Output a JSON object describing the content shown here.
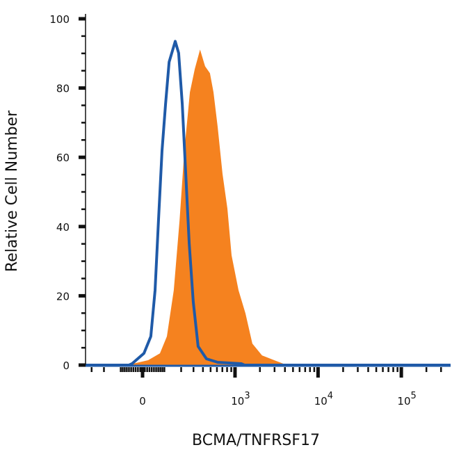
{
  "chart_data": {
    "type": "area",
    "xlabel": "BCMA/TNFRSF17",
    "ylabel": "Relative Cell Number",
    "x_scale": "biexponential",
    "xlim": [
      -360,
      390000
    ],
    "ylim": [
      0,
      100
    ],
    "x_ticks": [
      {
        "value": 0,
        "label": "0",
        "exp": ""
      },
      {
        "value": 1000,
        "label": "10",
        "exp": "3"
      },
      {
        "value": 10000,
        "label": "10",
        "exp": "4"
      },
      {
        "value": 100000,
        "label": "10",
        "exp": "5"
      }
    ],
    "y_ticks": [
      {
        "value": 0,
        "label": "0"
      },
      {
        "value": 20,
        "label": "20"
      },
      {
        "value": 40,
        "label": "40"
      },
      {
        "value": 60,
        "label": "60"
      },
      {
        "value": 80,
        "label": "80"
      },
      {
        "value": 100,
        "label": "100"
      }
    ],
    "grid": false,
    "series": [
      {
        "style": "filled",
        "color": "#f5821f",
        "x": [
          -360,
          -55,
          24,
          78,
          113,
          152,
          189,
          223,
          268,
          312,
          367,
          426,
          491,
          544,
          613,
          703,
          808,
          908,
          1103,
          1340,
          1622,
          2122,
          3120,
          4025,
          390000
        ],
        "y": [
          0,
          0.2,
          1.4,
          3.4,
          8.3,
          21.6,
          41.7,
          61.9,
          78.8,
          85.5,
          91.1,
          86.3,
          84.3,
          78.8,
          68.8,
          55.2,
          45.2,
          31.7,
          21.6,
          14.9,
          6.2,
          2.8,
          1.2,
          0.2,
          0
        ]
      },
      {
        "style": "line",
        "color": "#1f5aa8",
        "x": [
          -360,
          -60,
          -46,
          6,
          36,
          55,
          71,
          88,
          106,
          125,
          161,
          183,
          208,
          234,
          262,
          298,
          346,
          443,
          613,
          1192,
          1300,
          390000
        ],
        "y": [
          0,
          0,
          0.4,
          3.4,
          8.3,
          21.6,
          41.7,
          61.9,
          75.4,
          87.5,
          93.5,
          90.1,
          75.4,
          55.2,
          35.1,
          18.3,
          5.4,
          1.8,
          0.8,
          0.4,
          0,
          0
        ]
      }
    ]
  }
}
